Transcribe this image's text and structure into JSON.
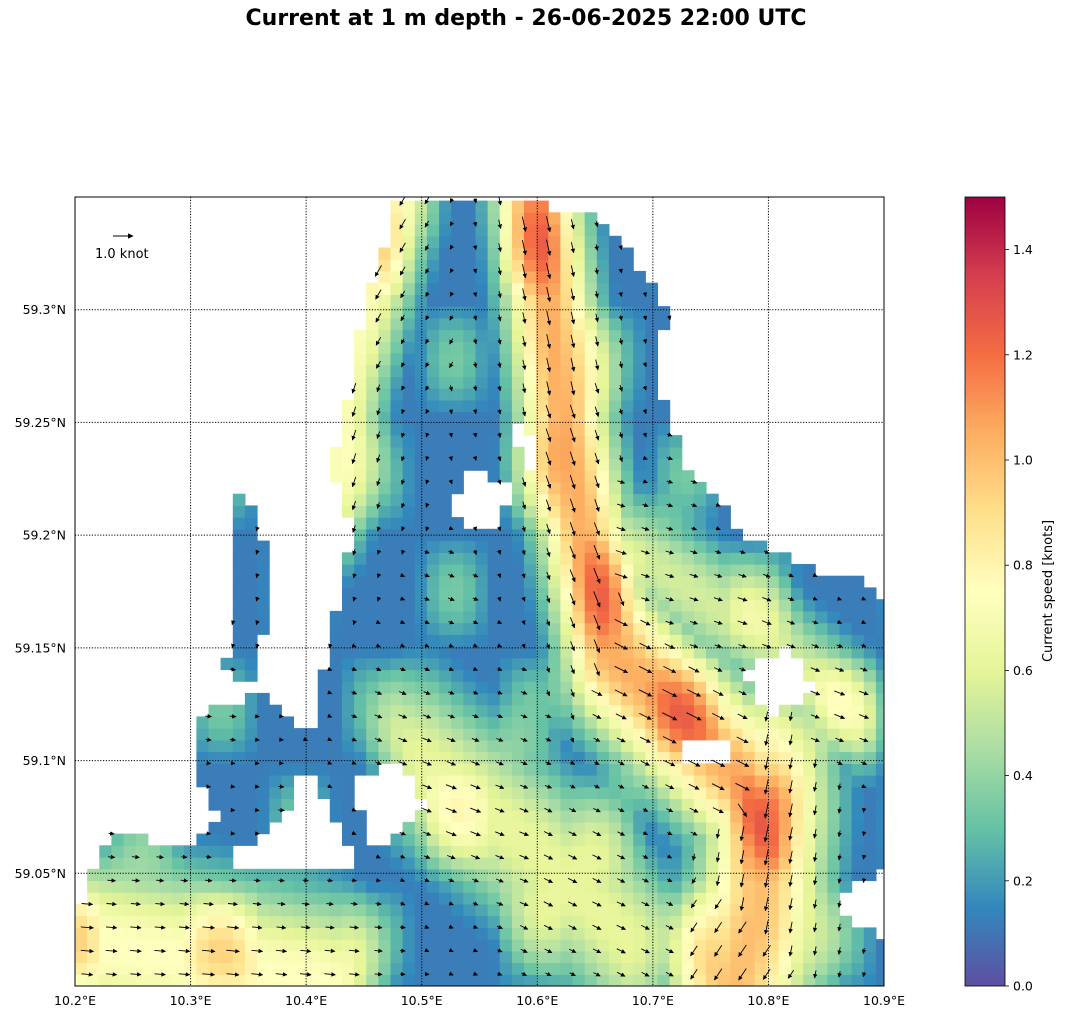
{
  "title": "Current at 1 m depth - 26-06-2025 22:00 UTC",
  "map": {
    "lon_range": [
      10.2,
      10.9
    ],
    "lat_range": [
      59.0,
      59.35
    ],
    "lon_ticks": [
      {
        "value": 10.2,
        "label": "10.2°E"
      },
      {
        "value": 10.3,
        "label": "10.3°E"
      },
      {
        "value": 10.4,
        "label": "10.4°E"
      },
      {
        "value": 10.5,
        "label": "10.5°E"
      },
      {
        "value": 10.6,
        "label": "10.6°E"
      },
      {
        "value": 10.7,
        "label": "10.7°E"
      },
      {
        "value": 10.8,
        "label": "10.8°E"
      },
      {
        "value": 10.9,
        "label": "10.9°E"
      }
    ],
    "lat_ticks": [
      {
        "value": 59.05,
        "label": "59.05°N"
      },
      {
        "value": 59.1,
        "label": "59.1°N"
      },
      {
        "value": 59.15,
        "label": "59.15°N"
      },
      {
        "value": 59.2,
        "label": "59.2°N"
      },
      {
        "value": 59.25,
        "label": "59.25°N"
      },
      {
        "value": 59.3,
        "label": "59.3°N"
      }
    ],
    "gridlines": true,
    "quiver_key": {
      "label": "1.0 knot",
      "value": 1.0,
      "placement": "top-left"
    },
    "fields": {
      "description_free": true,
      "channels": [
        {
          "path": [
            [
              10.6,
              59.35
            ],
            [
              10.62,
              59.26
            ],
            [
              10.64,
              59.2
            ],
            [
              10.66,
              59.15
            ],
            [
              10.74,
              59.11
            ],
            [
              10.78,
              59.09
            ],
            [
              10.8,
              59.06
            ]
          ],
          "peak": 1.05,
          "width": 0.028
        },
        {
          "path": [
            [
              10.8,
              59.08
            ],
            [
              10.79,
              59.03
            ],
            [
              10.77,
              59.0
            ]
          ],
          "peak": 1.0,
          "width": 0.04
        },
        {
          "path": [
            [
              10.48,
              59.35
            ],
            [
              10.44,
              59.28
            ],
            [
              10.42,
              59.22
            ]
          ],
          "peak": 0.72,
          "width": 0.025
        },
        {
          "path": [
            [
              10.2,
              59.02
            ],
            [
              10.32,
              59.01
            ],
            [
              10.42,
              59.0
            ]
          ],
          "peak": 0.75,
          "width": 0.03
        },
        {
          "path": [
            [
              10.5,
              59.1
            ],
            [
              10.6,
              59.06
            ],
            [
              10.68,
              59.02
            ]
          ],
          "peak": 0.62,
          "width": 0.03
        },
        {
          "path": [
            [
              10.66,
              59.2
            ],
            [
              10.78,
              59.16
            ],
            [
              10.88,
              59.12
            ]
          ],
          "peak": 0.55,
          "width": 0.02
        }
      ]
    }
  },
  "colorbar": {
    "label": "Current speed [knots]",
    "range": [
      0.0,
      1.5
    ],
    "ticks": [
      {
        "value": 0.0,
        "label": "0.0"
      },
      {
        "value": 0.2,
        "label": "0.2"
      },
      {
        "value": 0.4,
        "label": "0.4"
      },
      {
        "value": 0.6,
        "label": "0.6"
      },
      {
        "value": 0.8,
        "label": "0.8"
      },
      {
        "value": 1.0,
        "label": "1.0"
      },
      {
        "value": 1.2,
        "label": "1.2"
      },
      {
        "value": 1.4,
        "label": "1.4"
      }
    ],
    "colormap": "Spectral_r",
    "colors": [
      "#5e4fa2",
      "#3288bd",
      "#66c2a5",
      "#abdda4",
      "#e6f598",
      "#ffffbf",
      "#fee08b",
      "#fdae61",
      "#f46d43",
      "#d53e4f",
      "#9e0142"
    ]
  }
}
